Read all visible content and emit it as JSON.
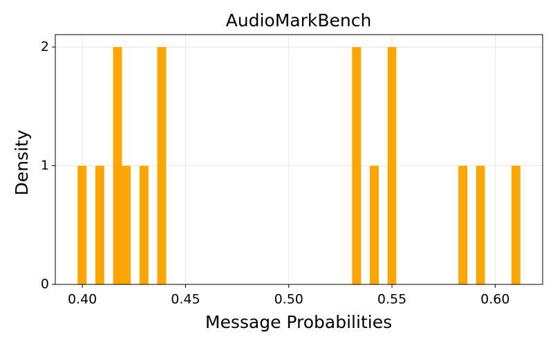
{
  "chart_data": {
    "type": "histogram",
    "title": "AudioMarkBench",
    "x_label": "Message Probabilities",
    "y_label": "Density",
    "bins": [
      0.3977,
      0.402,
      0.4063,
      0.4106,
      0.4149,
      0.4192,
      0.4234,
      0.4277,
      0.432,
      0.4363,
      0.4406,
      0.4449,
      0.4492,
      0.4535,
      0.4578,
      0.4621,
      0.4663,
      0.4706,
      0.4749,
      0.4792,
      0.4835,
      0.4878,
      0.4921,
      0.4964,
      0.5007,
      0.505,
      0.5092,
      0.5135,
      0.5178,
      0.5221,
      0.5264,
      0.5307,
      0.535,
      0.5393,
      0.5436,
      0.5479,
      0.5521,
      0.5564,
      0.5607,
      0.565,
      0.5693,
      0.5736,
      0.5779,
      0.5822,
      0.5865,
      0.5908,
      0.595,
      0.5993,
      0.6036,
      0.6079,
      0.6122
    ],
    "values": [
      1,
      0,
      1,
      0,
      2,
      1,
      0,
      1,
      0,
      2,
      0,
      0,
      0,
      0,
      0,
      0,
      0,
      0,
      0,
      0,
      0,
      0,
      0,
      0,
      0,
      0,
      0,
      0,
      0,
      0,
      0,
      2,
      0,
      1,
      0,
      2,
      0,
      0,
      0,
      0,
      0,
      0,
      0,
      1,
      0,
      1,
      0,
      0,
      0,
      1
    ],
    "color": "#ffa500",
    "xlim": [
      0.3869,
      0.623
    ],
    "xticks": [
      {
        "value": 0.4,
        "label": "0.40"
      },
      {
        "value": 0.45,
        "label": "0.45"
      },
      {
        "value": 0.5,
        "label": "0.50"
      },
      {
        "value": 0.55,
        "label": "0.55"
      },
      {
        "value": 0.6,
        "label": "0.60"
      }
    ],
    "ylim": [
      0,
      2.105
    ],
    "yticks": [
      0,
      1,
      2
    ],
    "grid": true
  }
}
